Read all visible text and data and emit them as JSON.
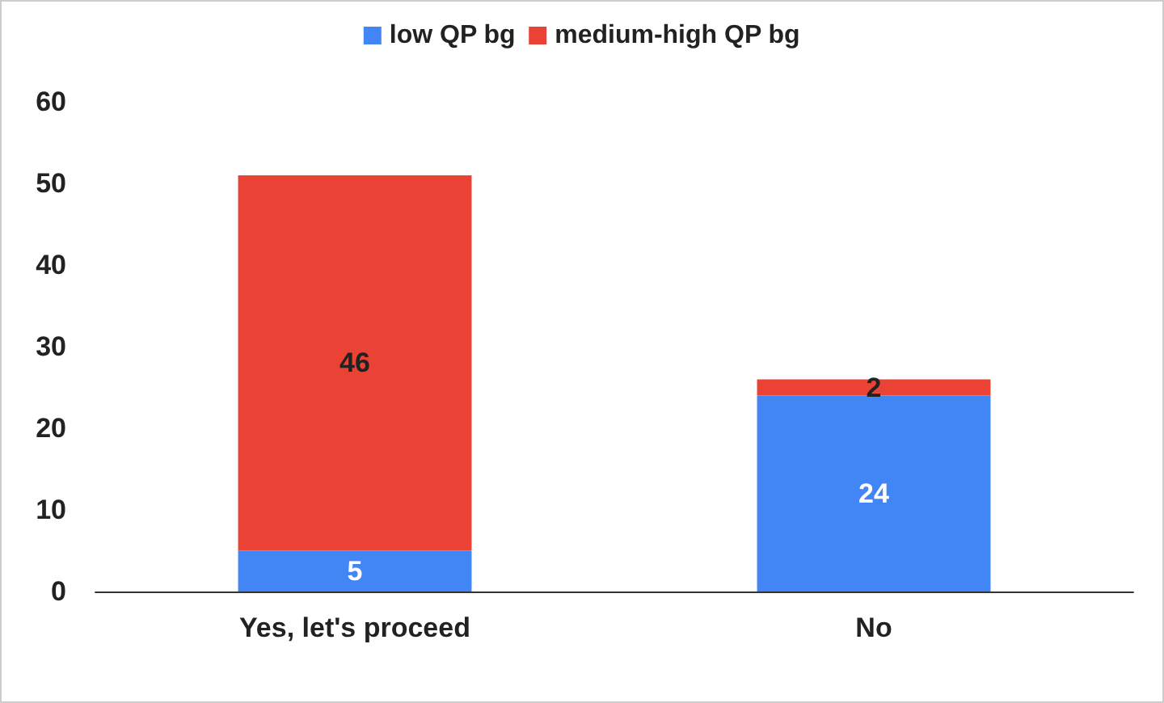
{
  "chart_data": {
    "type": "bar",
    "stacked": true,
    "categories": [
      "Yes, let's proceed",
      "No"
    ],
    "series": [
      {
        "name": "low QP bg",
        "color": "#4285f4",
        "values": [
          5,
          24
        ]
      },
      {
        "name": "medium-high QP bg",
        "color": "#ea4335",
        "values": [
          46,
          2
        ]
      }
    ],
    "ylim": [
      0,
      60
    ],
    "yticks": [
      0,
      10,
      20,
      30,
      40,
      50,
      60
    ],
    "grid": false,
    "legend": "top",
    "data_labels": true
  }
}
